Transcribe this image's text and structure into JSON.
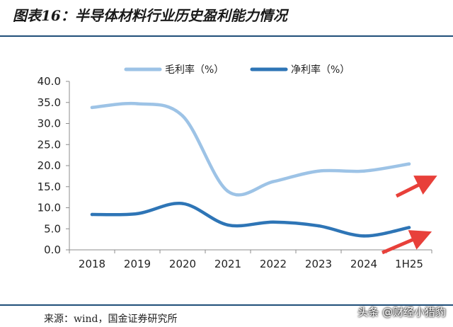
{
  "title": "图表16：半导体材料行业历史盈利能力情况",
  "source": "来源：wind，国金证券研究所",
  "watermark": "头条 @财经小猎豹",
  "chart_data": {
    "type": "line",
    "categories": [
      "2018",
      "2019",
      "2020",
      "2021",
      "2022",
      "2023",
      "2024",
      "1H25"
    ],
    "ylim": [
      0,
      40
    ],
    "yticks": [
      "0.0",
      "5.0",
      "10.0",
      "15.0",
      "20.0",
      "25.0",
      "30.0",
      "35.0",
      "40.0"
    ],
    "grid": false,
    "legend_position": "top",
    "series": [
      {
        "name": "毛利率（%）",
        "color": "#9dc3e6",
        "values": [
          33.8,
          34.7,
          31.8,
          13.9,
          16.2,
          18.7,
          18.7,
          20.4
        ]
      },
      {
        "name": "净利率（%）",
        "color": "#2e75b6",
        "values": [
          8.4,
          8.6,
          11.0,
          5.9,
          6.6,
          5.7,
          3.3,
          5.3
        ]
      }
    ],
    "annotations": [
      {
        "type": "arrow",
        "color": "#e8403a",
        "meaning": "gross margin trending up"
      },
      {
        "type": "arrow",
        "color": "#e8403a",
        "meaning": "net margin trending up"
      }
    ]
  }
}
